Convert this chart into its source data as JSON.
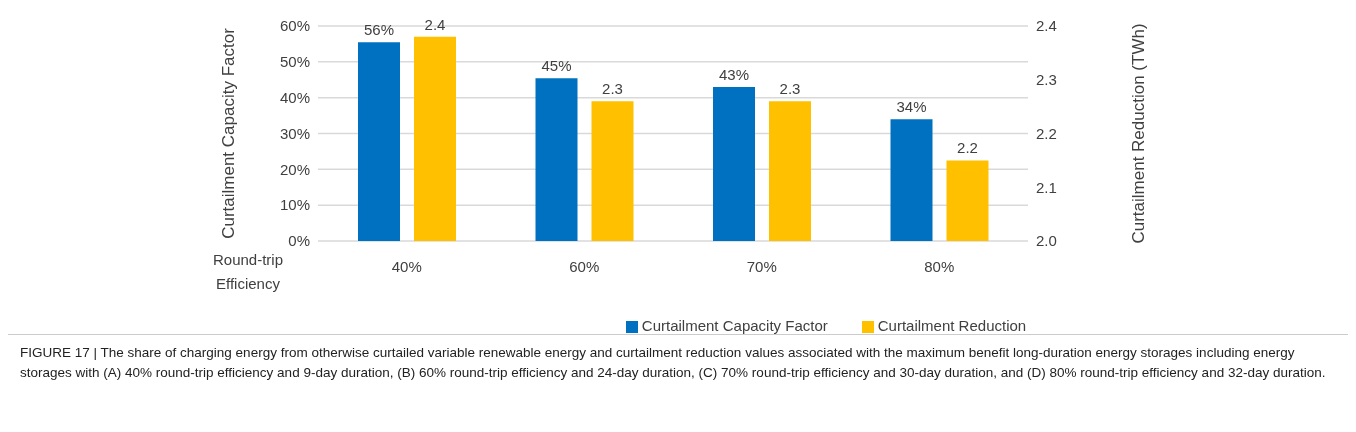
{
  "chart_data": {
    "type": "bar",
    "categories": [
      "40%",
      "60%",
      "70%",
      "80%"
    ],
    "xlabel": "Round-trip Efficiency",
    "ylabel": "Curtailment Capacity Factor",
    "y2label": "Curtailment Reduction (TWh)",
    "series": [
      {
        "name": "Curtailment Capacity Factor",
        "color": "#0070c0",
        "values": [
          55.5,
          45.4,
          43.0,
          34.0
        ],
        "value_labels": [
          "56%",
          "45%",
          "43%",
          "34%"
        ]
      },
      {
        "name": "Curtailment Reduction",
        "color": "#ffc000",
        "axis": "y2",
        "values": [
          2.38,
          2.26,
          2.26,
          2.15
        ],
        "value_labels": [
          "2.4",
          "2.3",
          "2.3",
          "2.2"
        ]
      }
    ],
    "ylim": [
      0,
      60
    ],
    "yticks": [
      {
        "value": 0,
        "label": "0%"
      },
      {
        "value": 10,
        "label": "10%"
      },
      {
        "value": 20,
        "label": "20%"
      },
      {
        "value": 30,
        "label": "30%"
      },
      {
        "value": 40,
        "label": "40%"
      },
      {
        "value": 50,
        "label": "50%"
      },
      {
        "value": 60,
        "label": "60%"
      }
    ],
    "y2lim": [
      2.0,
      2.4
    ],
    "y2ticks": [
      {
        "value": 2.0,
        "label": "2.0"
      },
      {
        "value": 2.1,
        "label": "2.1"
      },
      {
        "value": 2.2,
        "label": "2.2"
      },
      {
        "value": 2.3,
        "label": "2.3"
      },
      {
        "value": 2.4,
        "label": "2.4"
      }
    ],
    "grid": "y",
    "legend": "bottom",
    "annotations": [
      "FIGURE 17 | The share of charging energy from otherwise curtailed variable renewable energy and curtailment reduction values associated with the maximum benefit long-duration energy storages including energy storages with (A) 40% round-trip efficiency and 9-day duration, (B) 60% round-trip efficiency and 24-day duration, (C) 70% round-trip efficiency and 30-day duration, and (D) 80% round-trip efficiency and 32-day duration."
    ]
  }
}
